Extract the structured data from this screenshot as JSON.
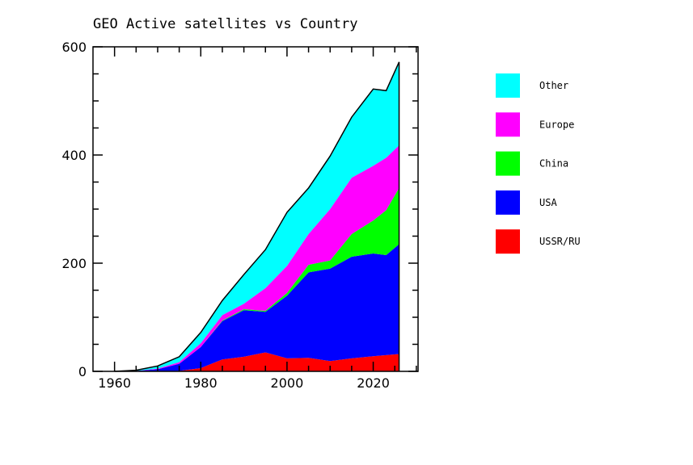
{
  "chart_data": {
    "type": "area",
    "stacked": true,
    "title": "GEO Active satellites vs Country",
    "xlabel": "",
    "ylabel": "",
    "xlim": [
      1955,
      2030.4
    ],
    "ylim": [
      0,
      600
    ],
    "x_ticks": [
      1960,
      1980,
      2000,
      2020
    ],
    "y_ticks": [
      0,
      200,
      400,
      600
    ],
    "legend_position": "right",
    "x": [
      1960,
      1965,
      1970,
      1975,
      1980,
      1985,
      1990,
      1995,
      2000,
      2005,
      2010,
      2015,
      2020,
      2023,
      2026
    ],
    "series": [
      {
        "name": "USSR/RU",
        "color": "#ff0000",
        "values": [
          0,
          0,
          0,
          1,
          6,
          22,
          27,
          35,
          24,
          25,
          19,
          24,
          28,
          30,
          32
        ]
      },
      {
        "name": "USA",
        "color": "#0000ff",
        "values": [
          0,
          1,
          4,
          13,
          39,
          71,
          86,
          75,
          116,
          158,
          171,
          188,
          190,
          185,
          203
        ]
      },
      {
        "name": "China",
        "color": "#00ff00",
        "values": [
          0,
          0,
          0,
          0,
          0,
          1,
          2,
          2,
          5,
          14,
          15,
          42,
          61,
          83,
          104
        ]
      },
      {
        "name": "Europe",
        "color": "#ff00ff",
        "values": [
          0,
          0,
          1,
          3,
          7,
          10,
          10,
          42,
          50,
          57,
          95,
          104,
          101,
          97,
          79
        ]
      },
      {
        "name": "Other",
        "color": "#00ffff",
        "values": [
          0,
          1,
          5,
          10,
          20,
          27,
          54,
          71,
          99,
          85,
          98,
          112,
          142,
          124,
          154
        ]
      }
    ],
    "legend_order": [
      "Other",
      "Europe",
      "China",
      "USA",
      "USSR/RU"
    ]
  }
}
